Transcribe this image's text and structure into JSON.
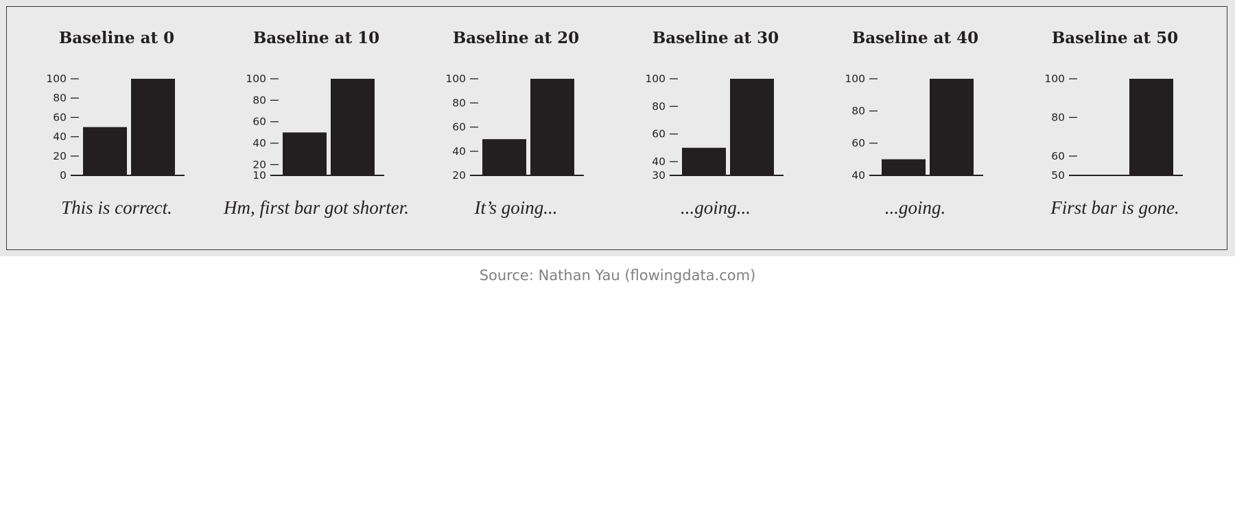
{
  "chart_data": [
    {
      "type": "bar",
      "title": "Baseline at 0",
      "caption": "This is correct.",
      "categories": [
        "",
        ""
      ],
      "values": [
        50,
        100
      ],
      "ylim": [
        0,
        100
      ],
      "yticks": [
        0,
        20,
        40,
        60,
        80,
        100
      ]
    },
    {
      "type": "bar",
      "title": "Baseline at 10",
      "caption": "Hm, first bar got shorter.",
      "categories": [
        "",
        ""
      ],
      "values": [
        50,
        100
      ],
      "ylim": [
        10,
        100
      ],
      "yticks": [
        10,
        20,
        40,
        60,
        80,
        100
      ]
    },
    {
      "type": "bar",
      "title": "Baseline at 20",
      "caption": "It’s going...",
      "categories": [
        "",
        ""
      ],
      "values": [
        50,
        100
      ],
      "ylim": [
        20,
        100
      ],
      "yticks": [
        20,
        40,
        60,
        80,
        100
      ]
    },
    {
      "type": "bar",
      "title": "Baseline at 30",
      "caption": "...going...",
      "categories": [
        "",
        ""
      ],
      "values": [
        50,
        100
      ],
      "ylim": [
        30,
        100
      ],
      "yticks": [
        30,
        40,
        60,
        80,
        100
      ]
    },
    {
      "type": "bar",
      "title": "Baseline at 40",
      "caption": "...going.",
      "categories": [
        "",
        ""
      ],
      "values": [
        50,
        100
      ],
      "ylim": [
        40,
        100
      ],
      "yticks": [
        40,
        60,
        80,
        100
      ]
    },
    {
      "type": "bar",
      "title": "Baseline at 50",
      "caption": "First bar is gone.",
      "categories": [
        "",
        ""
      ],
      "values": [
        50,
        100
      ],
      "ylim": [
        50,
        100
      ],
      "yticks": [
        50,
        60,
        80,
        100
      ],
      "ytick_labels": [
        "50",
        "60",
        "80",
        "100"
      ]
    }
  ],
  "source": "Source: Nathan Yau (flowingdata.com)",
  "colors": {
    "bar": "#231f20",
    "panel_background": "#eaeaea",
    "source_text": "#808080"
  }
}
